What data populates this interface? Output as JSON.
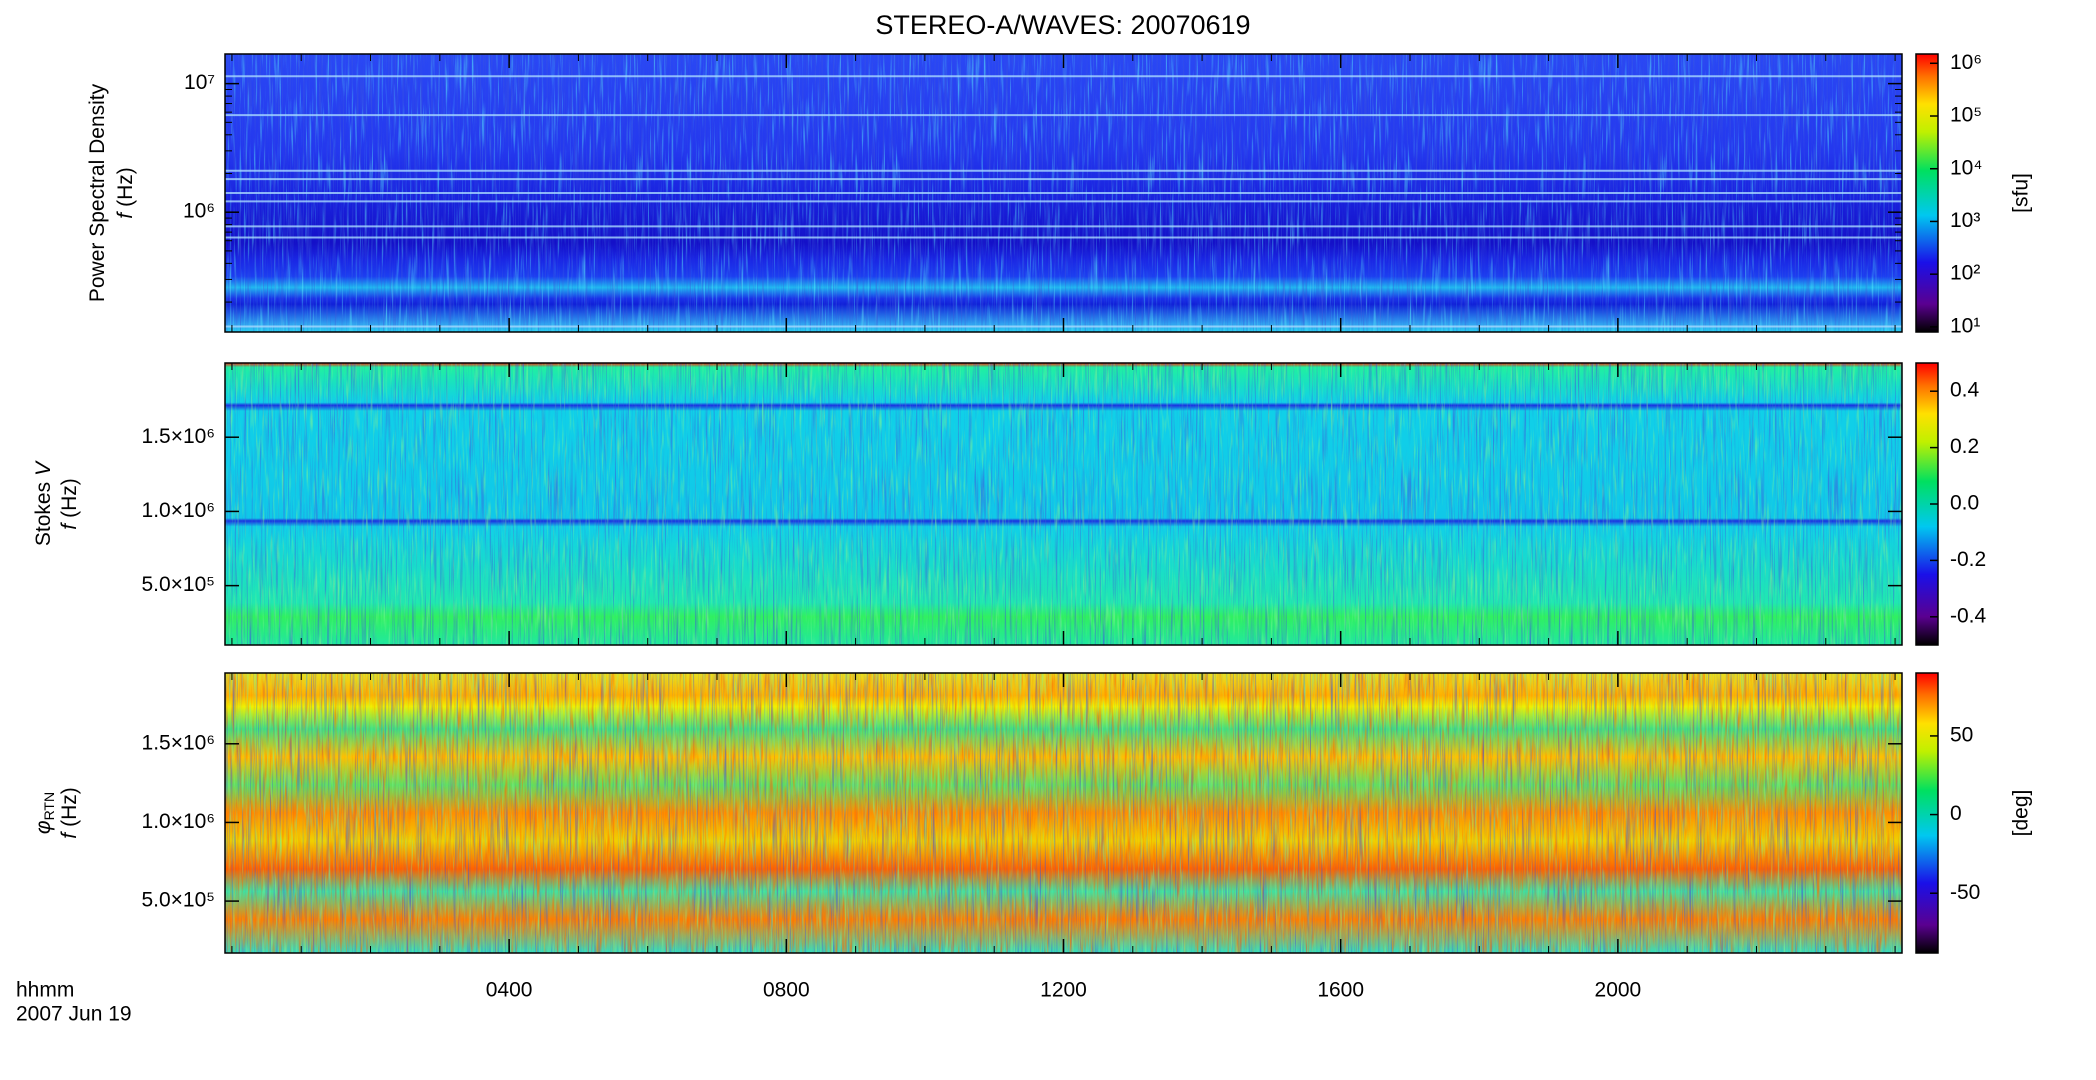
{
  "chart_data": {
    "type": "spectrogram",
    "title": "STEREO-A/WAVES: 20070619",
    "xlabel": [
      "hhmm",
      "2007 Jun 19"
    ],
    "xlim": [
      -0.1,
      24.1
    ],
    "xticks": [
      {
        "value": 4,
        "label": "0400"
      },
      {
        "value": 8,
        "label": "0800"
      },
      {
        "value": 12,
        "label": "1200"
      },
      {
        "value": 16,
        "label": "1600"
      },
      {
        "value": 20,
        "label": "2000"
      }
    ],
    "panels": [
      {
        "ylabel": [
          [
            {
              "text": "Power Spectral Density"
            }
          ],
          [
            {
              "text": "f",
              "style": "italic"
            },
            {
              "text": "(Hz)"
            }
          ]
        ],
        "ylog": true,
        "ylim": [
          117000,
          17000000
        ],
        "yticks": [
          {
            "value": 1000000,
            "label": "10⁶"
          },
          {
            "value": 10000000,
            "label": "10⁷"
          }
        ],
        "colorbar": {
          "log": true,
          "lim": [
            8,
            1500000
          ],
          "ticks": [
            {
              "value": 10,
              "label": "10¹"
            },
            {
              "value": 100,
              "label": "10²"
            },
            {
              "value": 1000,
              "label": "10³"
            },
            {
              "value": 10000,
              "label": "10⁴"
            },
            {
              "value": 100000,
              "label": "10⁵"
            },
            {
              "value": 1000000,
              "label": "10⁶"
            }
          ],
          "label": "[sfu]"
        }
      },
      {
        "ylabel": [
          [
            {
              "text": "Stokes"
            },
            {
              "text": "V",
              "style": "italic"
            }
          ],
          [
            {
              "text": "f",
              "style": "italic"
            },
            {
              "text": "(Hz)"
            }
          ]
        ],
        "ylog": false,
        "ylim": [
          100000,
          2000000
        ],
        "yticks": [
          {
            "value": 500000,
            "label": "5.0×10⁵"
          },
          {
            "value": 1000000,
            "label": "1.0×10⁶"
          },
          {
            "value": 1500000,
            "label": "1.5×10⁶"
          }
        ],
        "colorbar": {
          "log": false,
          "lim": [
            -0.5,
            0.5
          ],
          "ticks": [
            -0.4,
            -0.2,
            {
              "value": 0,
              "label": "0.0"
            },
            0.2,
            0.4
          ]
        }
      },
      {
        "ylabel": [
          [
            {
              "text": "φ",
              "style": "italic"
            },
            {
              "text": "RTN",
              "style": "sub"
            }
          ],
          [
            {
              "text": "f",
              "style": "italic"
            },
            {
              "text": "(Hz)"
            }
          ]
        ],
        "ylog": false,
        "ylim": [
          170000,
          1950000
        ],
        "yticks": [
          {
            "value": 500000,
            "label": "5.0×10⁵"
          },
          {
            "value": 1000000,
            "label": "1.0×10⁶"
          },
          {
            "value": 1500000,
            "label": "1.5×10⁶"
          }
        ],
        "colorbar": {
          "log": false,
          "lim": [
            -88,
            90
          ],
          "ticks": [
            -50,
            0,
            50
          ],
          "label": "[deg]"
        }
      }
    ]
  }
}
